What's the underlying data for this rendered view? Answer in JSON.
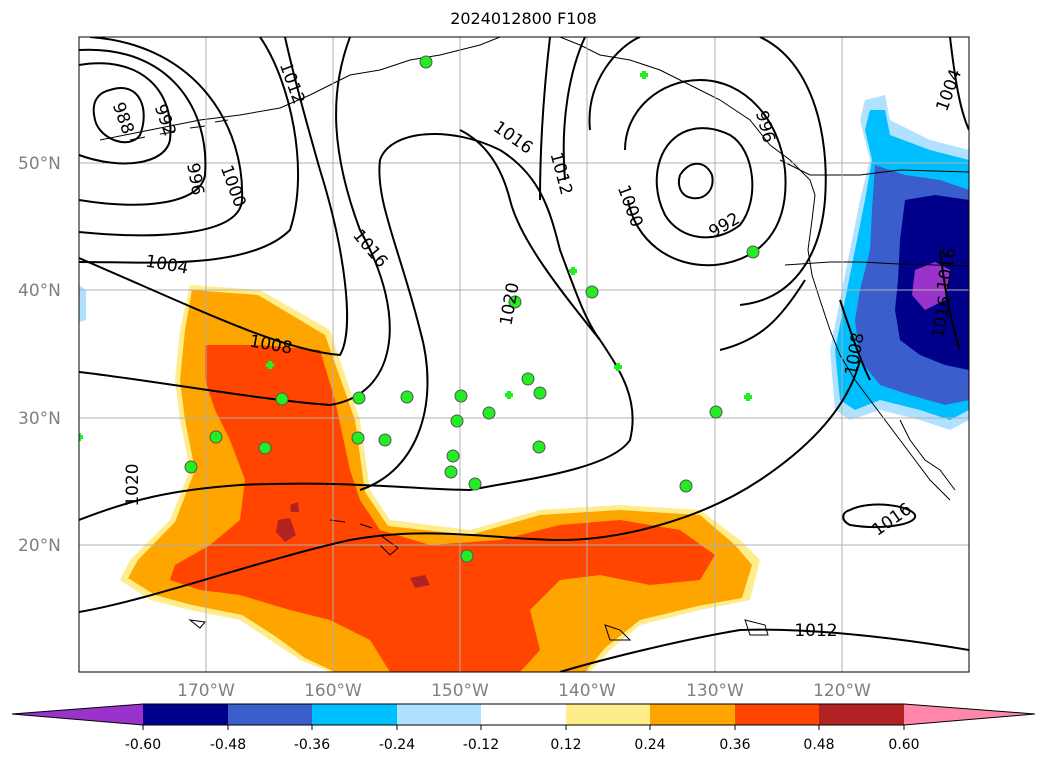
{
  "title": "2024012800 F108",
  "map": {
    "lat_labels": [
      "50°N",
      "40°N",
      "30°N",
      "20°N"
    ],
    "lon_labels": [
      "170°W",
      "160°W",
      "150°W",
      "140°W",
      "130°W",
      "120°W"
    ],
    "isobar_labels": [
      "988",
      "992",
      "996",
      "1000",
      "1004",
      "1008",
      "1012",
      "1016",
      "1020",
      "1016",
      "1012",
      "1016",
      "1020",
      "1000",
      "992",
      "996",
      "1012",
      "1016",
      "1004",
      "1008",
      "1016"
    ]
  },
  "colorbar": {
    "ticks": [
      "-0.60",
      "-0.48",
      "-0.36",
      "-0.24",
      "-0.12",
      "0.12",
      "0.24",
      "0.36",
      "0.48",
      "0.60"
    ],
    "colors": [
      "#9933cc",
      "#00008b",
      "#3a5fcd",
      "#00bfff",
      "#b0e2ff",
      "#ffffff",
      "#ffec8b",
      "#ffa500",
      "#ff4500",
      "#b22222",
      "#ff88aa"
    ]
  }
}
